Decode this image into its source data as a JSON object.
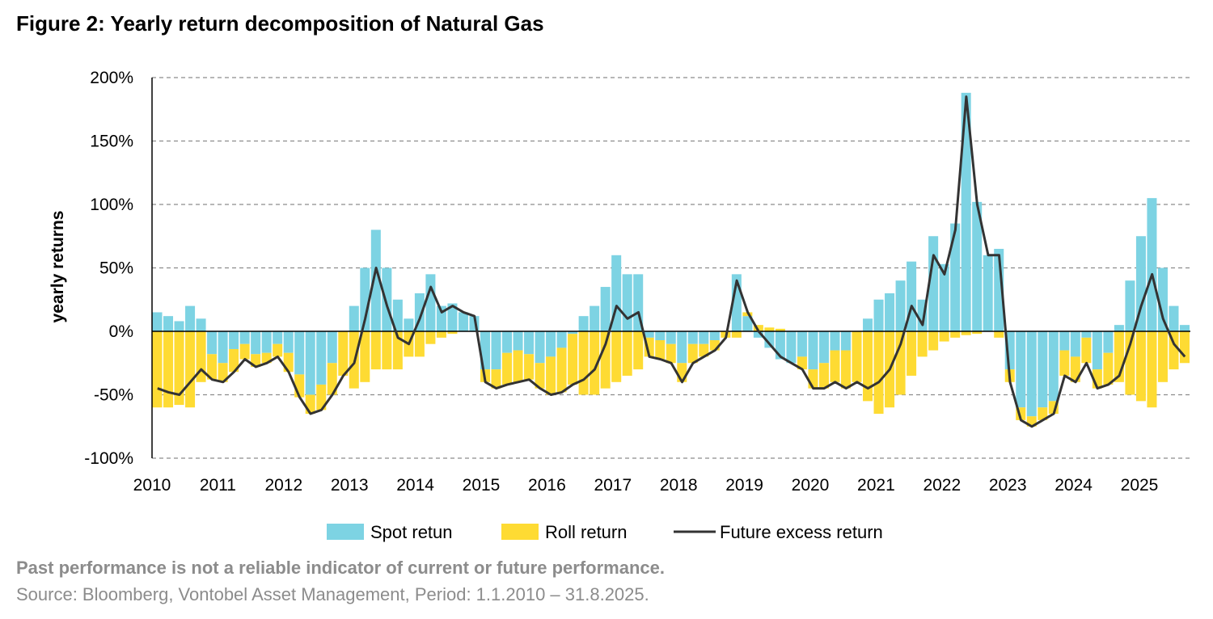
{
  "chart_data": {
    "type": "bar",
    "title": "Figure 2: Yearly return decomposition of Natural Gas",
    "xlabel": "",
    "ylabel": "yearly returns",
    "ylim": [
      -100,
      200
    ],
    "yticks": [
      "200%",
      "150%",
      "100%",
      "50%",
      "0%",
      "-50%",
      "-100%"
    ],
    "ytick_values": [
      200,
      150,
      100,
      50,
      0,
      -50,
      -100
    ],
    "xticks": [
      "2010",
      "2011",
      "2012",
      "2013",
      "2014",
      "2015",
      "2016",
      "2017",
      "2018",
      "2019",
      "2020",
      "2021",
      "2022",
      "2023",
      "2024",
      "2025"
    ],
    "xlim": [
      "2010-01",
      "2025-09"
    ],
    "grid": "horizontal dashed",
    "legend_position": "bottom",
    "colors": {
      "spot": "#7dd3e3",
      "roll": "#fedb33",
      "future": "#333333"
    },
    "x": [
      "2010-01",
      "2010-03",
      "2010-05",
      "2010-07",
      "2010-09",
      "2010-11",
      "2011-01",
      "2011-03",
      "2011-05",
      "2011-07",
      "2011-09",
      "2011-11",
      "2012-01",
      "2012-03",
      "2012-05",
      "2012-07",
      "2012-09",
      "2012-11",
      "2013-01",
      "2013-03",
      "2013-05",
      "2013-07",
      "2013-09",
      "2013-11",
      "2014-01",
      "2014-03",
      "2014-05",
      "2014-07",
      "2014-09",
      "2014-11",
      "2015-01",
      "2015-03",
      "2015-05",
      "2015-07",
      "2015-09",
      "2015-11",
      "2016-01",
      "2016-03",
      "2016-05",
      "2016-07",
      "2016-09",
      "2016-11",
      "2017-01",
      "2017-03",
      "2017-05",
      "2017-07",
      "2017-09",
      "2017-11",
      "2018-01",
      "2018-03",
      "2018-05",
      "2018-07",
      "2018-09",
      "2018-11",
      "2019-01",
      "2019-03",
      "2019-05",
      "2019-07",
      "2019-09",
      "2019-11",
      "2020-01",
      "2020-03",
      "2020-05",
      "2020-07",
      "2020-09",
      "2020-11",
      "2021-01",
      "2021-03",
      "2021-05",
      "2021-07",
      "2021-09",
      "2021-11",
      "2022-01",
      "2022-03",
      "2022-05",
      "2022-07",
      "2022-09",
      "2022-11",
      "2023-01",
      "2023-03",
      "2023-05",
      "2023-07",
      "2023-09",
      "2023-11",
      "2024-01",
      "2024-03",
      "2024-05",
      "2024-07",
      "2024-09",
      "2024-11",
      "2025-01",
      "2025-03",
      "2025-05",
      "2025-07",
      "2025-09"
    ],
    "series": [
      {
        "name": "Spot retun",
        "kind": "bar",
        "values": [
          15,
          12,
          8,
          20,
          10,
          -18,
          -25,
          -14,
          -10,
          -18,
          -17,
          -10,
          -17,
          -34,
          -50,
          -42,
          -25,
          0,
          20,
          50,
          80,
          50,
          25,
          10,
          30,
          45,
          20,
          22,
          15,
          12,
          -30,
          -30,
          -17,
          -15,
          -18,
          -25,
          -20,
          -13,
          -2,
          12,
          20,
          35,
          60,
          45,
          45,
          -5,
          -7,
          -10,
          -25,
          -10,
          -10,
          -7,
          0,
          45,
          12,
          -5,
          -13,
          -22,
          -25,
          -20,
          -30,
          -25,
          -15,
          -15,
          0,
          10,
          25,
          30,
          40,
          55,
          25,
          75,
          53,
          85,
          188,
          102,
          60,
          65,
          -30,
          -60,
          -67,
          -60,
          -55,
          -15,
          -20,
          -5,
          -30,
          -17,
          5,
          40,
          75,
          105,
          50,
          20,
          5
        ]
      },
      {
        "name": "Roll return",
        "kind": "bar",
        "values": [
          -60,
          -60,
          -58,
          -60,
          -40,
          -20,
          -15,
          -18,
          -12,
          -10,
          -8,
          -10,
          -15,
          -18,
          -15,
          -20,
          -25,
          -35,
          -45,
          -40,
          -30,
          -30,
          -30,
          -20,
          -20,
          -10,
          -5,
          -2,
          0,
          0,
          -10,
          -15,
          -25,
          -25,
          -20,
          -20,
          -30,
          -35,
          -40,
          -50,
          -50,
          -45,
          -40,
          -35,
          -30,
          -15,
          -15,
          -15,
          -15,
          -15,
          -10,
          -8,
          -5,
          -5,
          3,
          5,
          3,
          2,
          0,
          -10,
          -15,
          -20,
          -25,
          -30,
          -40,
          -55,
          -65,
          -60,
          -50,
          -35,
          -20,
          -15,
          -8,
          -5,
          -3,
          -2,
          0,
          -5,
          -10,
          -10,
          -8,
          -10,
          -10,
          -20,
          -20,
          -20,
          -15,
          -25,
          -40,
          -50,
          -55,
          -60,
          -40,
          -30,
          -25
        ]
      },
      {
        "name": "Future excess return",
        "kind": "line",
        "values": [
          -45,
          -48,
          -50,
          -40,
          -30,
          -38,
          -40,
          -32,
          -22,
          -28,
          -25,
          -20,
          -32,
          -52,
          -65,
          -62,
          -50,
          -35,
          -25,
          10,
          50,
          20,
          -5,
          -10,
          10,
          35,
          15,
          20,
          15,
          12,
          -40,
          -45,
          -42,
          -40,
          -38,
          -45,
          -50,
          -48,
          -42,
          -38,
          -30,
          -10,
          20,
          10,
          15,
          -20,
          -22,
          -25,
          -40,
          -25,
          -20,
          -15,
          -5,
          40,
          15,
          0,
          -10,
          -20,
          -25,
          -30,
          -45,
          -45,
          -40,
          -45,
          -40,
          -45,
          -40,
          -30,
          -10,
          20,
          5,
          60,
          45,
          80,
          185,
          100,
          60,
          60,
          -40,
          -70,
          -75,
          -70,
          -65,
          -35,
          -40,
          -25,
          -45,
          -42,
          -35,
          -10,
          20,
          45,
          10,
          -10,
          -20
        ]
      }
    ]
  },
  "footer": {
    "note": "Past performance is not a reliable indicator of current or future performance.",
    "source": "Source: Bloomberg, Vontobel Asset Management, Period: 1.1.2010 – 31.8.2025."
  }
}
